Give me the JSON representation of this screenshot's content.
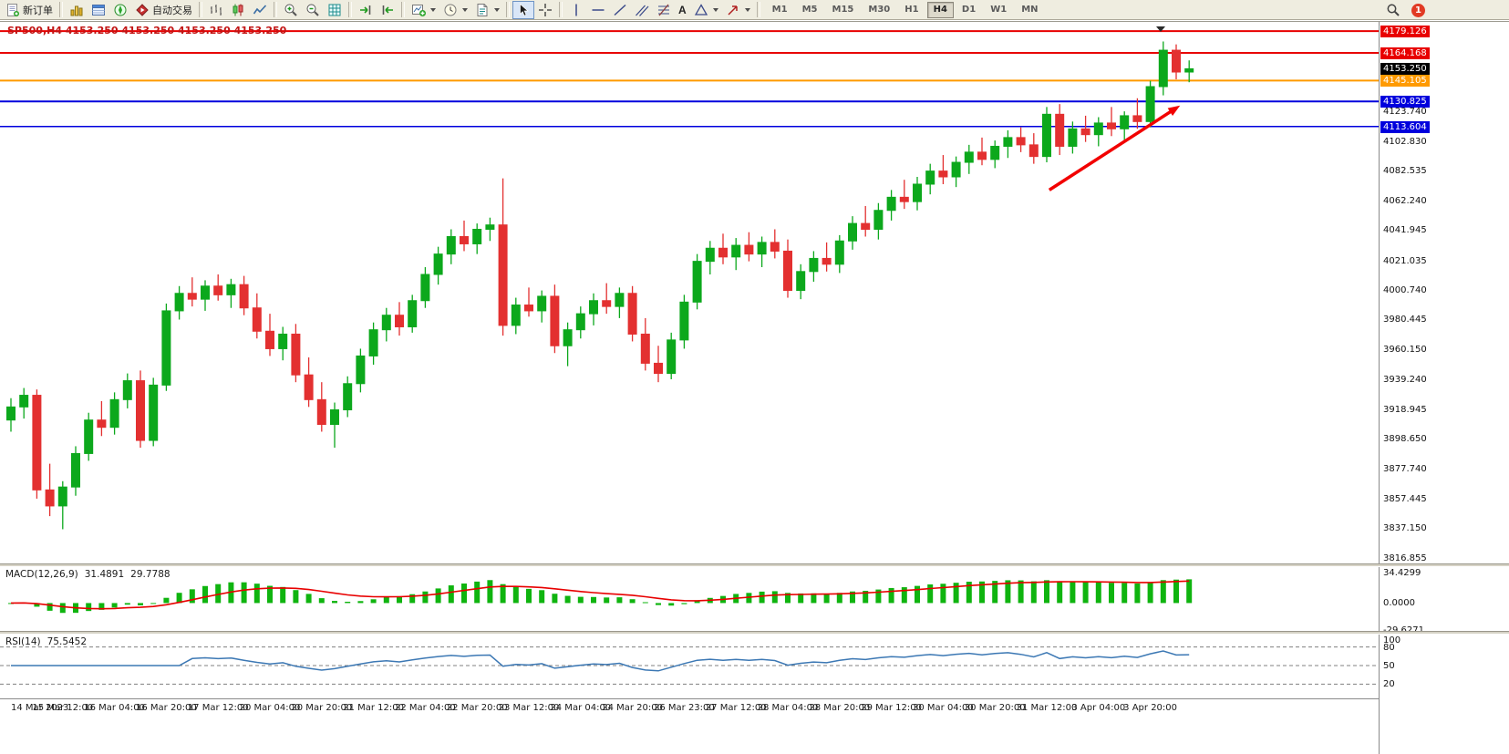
{
  "toolbar": {
    "new_order_label": "新订单",
    "autotrading_label": "自动交易",
    "text_tool_label": "A",
    "timeframes": [
      "M1",
      "M5",
      "M15",
      "M30",
      "H1",
      "H4",
      "D1",
      "W1",
      "MN"
    ],
    "active_timeframe": "H4",
    "notification_badge": "1"
  },
  "chart": {
    "title": "SP500,H4 4153.250 4153.250 4153.250 4153.250"
  },
  "indicators": {
    "macd": {
      "name": "MACD(12,26,9)",
      "value_main": "31.4891",
      "value_signal": "29.7788"
    },
    "rsi": {
      "name": "RSI(14)",
      "value": "75.5452"
    }
  },
  "chart_data": {
    "type": "candlestick",
    "symbol": "SP500",
    "timeframe": "H4",
    "colors": {
      "up": "#0ca81c",
      "down": "#e33030",
      "line_red": "#e80000",
      "line_orange": "#ff9a00",
      "line_blue": "#0000dd",
      "macd_histogram": "#0fb40f",
      "macd_signal": "#e80000",
      "rsi_line": "#3c78b4",
      "level_dash": "#808080",
      "arrow": "#f20000"
    },
    "y_range": [
      3813.5,
      4184.2
    ],
    "y_ticks": [
      {
        "label": "4123.740",
        "value": 4123.74
      },
      {
        "label": "4102.830",
        "value": 4102.83
      },
      {
        "label": "4082.535",
        "value": 4082.535
      },
      {
        "label": "4062.240",
        "value": 4062.24
      },
      {
        "label": "4041.945",
        "value": 4041.945
      },
      {
        "label": "4021.035",
        "value": 4021.035
      },
      {
        "label": "4000.740",
        "value": 4000.74
      },
      {
        "label": "3980.445",
        "value": 3980.445
      },
      {
        "label": "3960.150",
        "value": 3960.15
      },
      {
        "label": "3939.240",
        "value": 3939.24
      },
      {
        "label": "3918.945",
        "value": 3918.945
      },
      {
        "label": "3898.650",
        "value": 3898.65
      },
      {
        "label": "3877.740",
        "value": 3877.74
      },
      {
        "label": "3857.445",
        "value": 3857.445
      },
      {
        "label": "3837.150",
        "value": 3837.15
      },
      {
        "label": "3816.855",
        "value": 3816.855
      }
    ],
    "price_lines": [
      {
        "label": "4179.126",
        "value": 4179.126,
        "color": "#e80000",
        "width": 2
      },
      {
        "label": "4164.168",
        "value": 4164.168,
        "color": "#e80000",
        "width": 2
      },
      {
        "label": "4145.105",
        "value": 4145.105,
        "color": "#ff9a00",
        "width": 2
      },
      {
        "label": "4130.825",
        "value": 4130.825,
        "color": "#0000dd",
        "width": 2
      },
      {
        "label": "4113.604",
        "value": 4113.604,
        "color": "#0000dd",
        "width": 1.5
      }
    ],
    "current_price": {
      "label": "4153.250",
      "value": 4153.25
    },
    "candles": [
      [
        3912,
        3927,
        3904,
        3921
      ],
      [
        3921,
        3934,
        3913,
        3929
      ],
      [
        3929,
        3933,
        3858,
        3864
      ],
      [
        3864,
        3882,
        3846,
        3853
      ],
      [
        3853,
        3870,
        3837,
        3866
      ],
      [
        3866,
        3894,
        3860,
        3889
      ],
      [
        3889,
        3917,
        3884,
        3912
      ],
      [
        3912,
        3925,
        3901,
        3907
      ],
      [
        3907,
        3931,
        3902,
        3926
      ],
      [
        3926,
        3944,
        3920,
        3939
      ],
      [
        3939,
        3946,
        3893,
        3898
      ],
      [
        3898,
        3941,
        3894,
        3936
      ],
      [
        3936,
        3992,
        3932,
        3987
      ],
      [
        3987,
        4004,
        3981,
        3999
      ],
      [
        3999,
        4010,
        3990,
        3995
      ],
      [
        3995,
        4008,
        3987,
        4004
      ],
      [
        4004,
        4012,
        3994,
        3998
      ],
      [
        3998,
        4009,
        3989,
        4005
      ],
      [
        4005,
        4011,
        3984,
        3989
      ],
      [
        3989,
        3999,
        3968,
        3973
      ],
      [
        3973,
        3985,
        3956,
        3961
      ],
      [
        3961,
        3976,
        3953,
        3971
      ],
      [
        3971,
        3978,
        3938,
        3943
      ],
      [
        3943,
        3955,
        3921,
        3926
      ],
      [
        3926,
        3938,
        3904,
        3909
      ],
      [
        3909,
        3924,
        3893,
        3919
      ],
      [
        3919,
        3942,
        3914,
        3937
      ],
      [
        3937,
        3961,
        3931,
        3956
      ],
      [
        3956,
        3979,
        3950,
        3974
      ],
      [
        3974,
        3989,
        3966,
        3984
      ],
      [
        3984,
        3993,
        3970,
        3976
      ],
      [
        3976,
        3998,
        3972,
        3994
      ],
      [
        3994,
        4017,
        3989,
        4012
      ],
      [
        4012,
        4031,
        4005,
        4026
      ],
      [
        4026,
        4043,
        4019,
        4038
      ],
      [
        4038,
        4049,
        4028,
        4033
      ],
      [
        4033,
        4047,
        4026,
        4043
      ],
      [
        4043,
        4051,
        4035,
        4046
      ],
      [
        4046,
        4078,
        3970,
        3977
      ],
      [
        3977,
        3996,
        3971,
        3991
      ],
      [
        3991,
        4003,
        3983,
        3987
      ],
      [
        3987,
        4001,
        3979,
        3997
      ],
      [
        3997,
        4005,
        3958,
        3963
      ],
      [
        3963,
        3979,
        3949,
        3974
      ],
      [
        3974,
        3990,
        3968,
        3985
      ],
      [
        3985,
        3999,
        3977,
        3994
      ],
      [
        3994,
        4006,
        3985,
        3990
      ],
      [
        3990,
        4003,
        3982,
        3999
      ],
      [
        3999,
        4004,
        3966,
        3971
      ],
      [
        3971,
        3982,
        3946,
        3951
      ],
      [
        3951,
        3963,
        3938,
        3944
      ],
      [
        3944,
        3972,
        3940,
        3967
      ],
      [
        3967,
        3998,
        3961,
        3993
      ],
      [
        3993,
        4026,
        3988,
        4021
      ],
      [
        4021,
        4035,
        4012,
        4030
      ],
      [
        4030,
        4040,
        4019,
        4024
      ],
      [
        4024,
        4037,
        4015,
        4032
      ],
      [
        4032,
        4041,
        4021,
        4026
      ],
      [
        4026,
        4038,
        4017,
        4034
      ],
      [
        4034,
        4043,
        4023,
        4028
      ],
      [
        4028,
        4036,
        3996,
        4001
      ],
      [
        4001,
        4019,
        3995,
        4014
      ],
      [
        4014,
        4028,
        4007,
        4023
      ],
      [
        4023,
        4034,
        4014,
        4019
      ],
      [
        4019,
        4039,
        4013,
        4035
      ],
      [
        4035,
        4052,
        4029,
        4047
      ],
      [
        4047,
        4059,
        4038,
        4043
      ],
      [
        4043,
        4061,
        4036,
        4056
      ],
      [
        4056,
        4070,
        4049,
        4065
      ],
      [
        4065,
        4077,
        4057,
        4062
      ],
      [
        4062,
        4079,
        4056,
        4074
      ],
      [
        4074,
        4088,
        4067,
        4083
      ],
      [
        4083,
        4094,
        4074,
        4079
      ],
      [
        4079,
        4093,
        4072,
        4089
      ],
      [
        4089,
        4101,
        4081,
        4096
      ],
      [
        4096,
        4106,
        4087,
        4091
      ],
      [
        4091,
        4104,
        4085,
        4100
      ],
      [
        4100,
        4111,
        4092,
        4106
      ],
      [
        4106,
        4113,
        4096,
        4101
      ],
      [
        4101,
        4109,
        4088,
        4093
      ],
      [
        4093,
        4127,
        4089,
        4122
      ],
      [
        4122,
        4129,
        4094,
        4100
      ],
      [
        4100,
        4117,
        4095,
        4112
      ],
      [
        4112,
        4121,
        4103,
        4108
      ],
      [
        4108,
        4120,
        4100,
        4116
      ],
      [
        4116,
        4127,
        4107,
        4112
      ],
      [
        4112,
        4124,
        4104,
        4121
      ],
      [
        4121,
        4133,
        4112,
        4117
      ],
      [
        4117,
        4145,
        4113,
        4141
      ],
      [
        4141,
        4172,
        4135,
        4166
      ],
      [
        4166,
        4170,
        4146,
        4151
      ],
      [
        4151,
        4159,
        4144,
        4153.25
      ]
    ],
    "x_labels": [
      "14 Mar 2023",
      "15 Mar 12:00",
      "16 Mar 04:00",
      "16 Mar 20:00",
      "17 Mar 12:00",
      "20 Mar 04:00",
      "20 Mar 20:00",
      "21 Mar 12:00",
      "22 Mar 04:00",
      "22 Mar 20:00",
      "23 Mar 12:00",
      "24 Mar 04:00",
      "24 Mar 20:00",
      "26 Mar 23:00",
      "27 Mar 12:00",
      "28 Mar 04:00",
      "28 Mar 20:00",
      "29 Mar 12:00",
      "30 Mar 04:00",
      "30 Mar 20:00",
      "31 Mar 12:00",
      "3 Apr 04:00",
      "3 Apr 20:00"
    ],
    "arrow_annotation": {
      "from_bar": 80.2,
      "from_price": 4070,
      "to_bar": 90.3,
      "to_price": 4128,
      "color": "#f20000"
    },
    "macd": {
      "params": [
        12,
        26,
        9
      ],
      "y_range": [
        -31,
        40
      ],
      "ticks": [
        {
          "label": "34.4299",
          "value": 34.4299
        },
        {
          "label": "0.0000",
          "value": 0
        },
        {
          "label": "-29.6271",
          "value": -29.6271
        }
      ]
    },
    "rsi": {
      "period": 14,
      "levels": [
        80,
        50,
        20
      ],
      "y_range": [
        0,
        100
      ],
      "ticks": [
        {
          "label": "100",
          "value": 100
        },
        {
          "label": "80",
          "value": 80
        },
        {
          "label": "50",
          "value": 50
        },
        {
          "label": "20",
          "value": 20
        }
      ]
    }
  }
}
